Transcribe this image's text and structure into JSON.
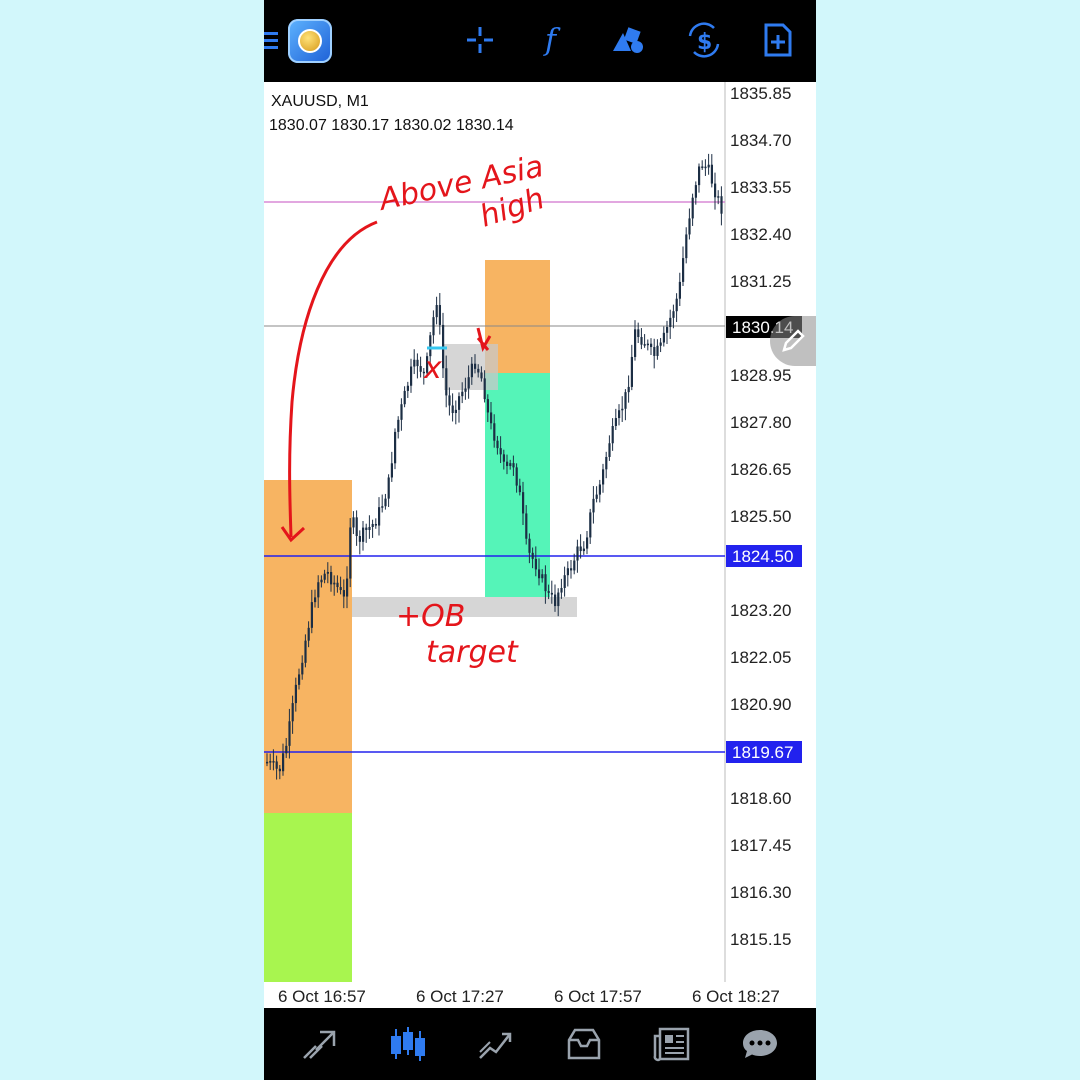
{
  "app": {
    "symbol": "XAUUSD, M1",
    "ohlc": "1830.07 1830.17 1830.02 1830.14"
  },
  "toolbar": {
    "icons": [
      "menu-icon",
      "app-logo-icon",
      "crosshair-icon",
      "indicators-icon",
      "objects-icon",
      "trade-icon",
      "new-order-icon"
    ],
    "indicators_glyph": "f",
    "trade_glyph": "$"
  },
  "price_axis": {
    "ticks": [
      "1835.85",
      "1834.70",
      "1833.55",
      "1832.40",
      "1831.25",
      "1830.14",
      "1828.95",
      "1827.80",
      "1826.65",
      "1825.50",
      "1824.50",
      "1823.20",
      "1822.05",
      "1820.90",
      "1819.67",
      "1818.60",
      "1817.45",
      "1816.30",
      "1815.15"
    ],
    "current_price": "1830.14",
    "level_upper": "1824.50",
    "level_lower": "1819.67"
  },
  "time_axis": {
    "labels": [
      "6 Oct 16:57",
      "6 Oct 17:27",
      "6 Oct 17:57",
      "6 Oct 18:27"
    ]
  },
  "annotations": {
    "above_asia_high_1": "Above Asia",
    "above_asia_high_2": "high",
    "x_mark": "x",
    "tob_line1": "+OB",
    "tob_line2": "target"
  },
  "colors": {
    "background": "#d2f7fb",
    "accent_blue": "#2f7bf0",
    "level_blue": "#2222ee",
    "asia_high_line": "#d98ad6",
    "orange_zone": "#f7b462",
    "green_zone": "#a8f54f",
    "teal_zone": "#55f4b8",
    "grey_zone": "#cccccc",
    "candle": "#1c2e44",
    "annotation_red": "#e4151b"
  },
  "bottom_nav": {
    "tabs": [
      "quotes-icon",
      "chart-icon",
      "trade-icon",
      "history-icon",
      "news-icon",
      "chat-icon"
    ],
    "active": "chart-icon"
  }
}
